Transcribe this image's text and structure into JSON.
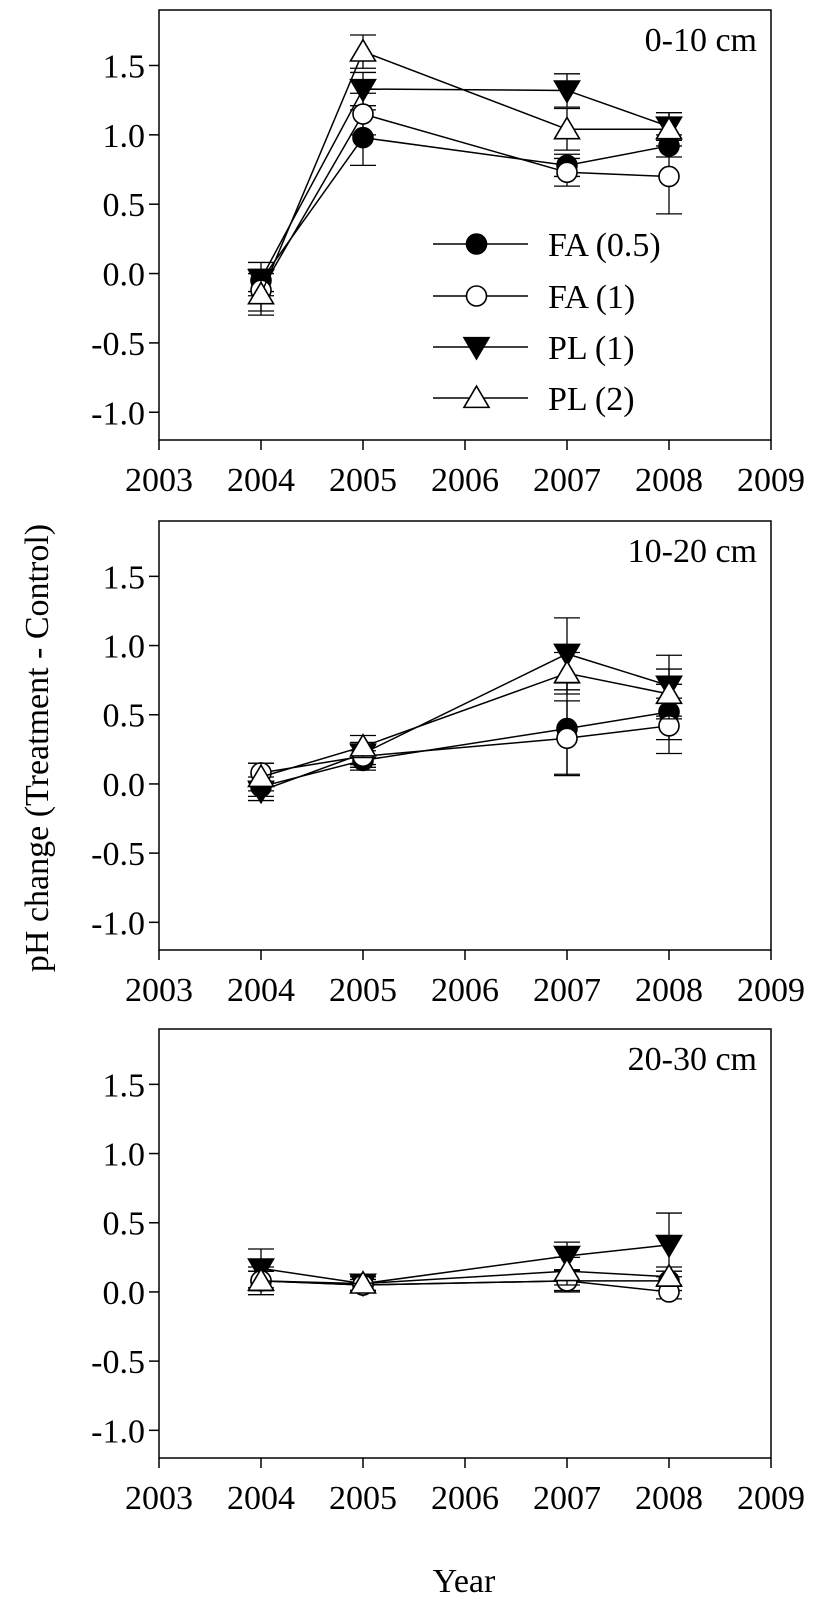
{
  "chart_data": {
    "type": "line",
    "ylabel": "pH change (Treatment - Control)",
    "xlabel": "Year",
    "xlim": [
      2003,
      2009
    ],
    "xticks": [
      2003,
      2004,
      2005,
      2006,
      2007,
      2008,
      2009
    ],
    "ylim": [
      -1.2,
      1.9
    ],
    "yticks": [
      -1.0,
      -0.5,
      0.0,
      0.5,
      1.0,
      1.5
    ],
    "ytick_labels": [
      "-1.0",
      "-0.5",
      "0.0",
      "0.5",
      "1.0",
      "1.5"
    ],
    "grid": false,
    "legend": {
      "placement": "inside top panel, center-right",
      "entries": [
        "FA (0.5)",
        "FA (1)",
        "PL (1)",
        "PL (2)"
      ]
    },
    "series_styles": [
      {
        "name": "FA (0.5)",
        "marker": "circle",
        "fill": "#000000"
      },
      {
        "name": "FA (1)",
        "marker": "circle",
        "fill": "#ffffff"
      },
      {
        "name": "PL (1)",
        "marker": "triangle-down",
        "fill": "#000000"
      },
      {
        "name": "PL (2)",
        "marker": "triangle-up",
        "fill": "#ffffff"
      }
    ],
    "panels": [
      {
        "label": "0-10 cm",
        "x": [
          2004,
          2005,
          2007,
          2008
        ],
        "series": [
          {
            "name": "FA (0.5)",
            "values": [
              -0.05,
              0.98,
              0.78,
              0.92
            ],
            "errors": [
              0.08,
              0.2,
              0.08,
              0.08
            ]
          },
          {
            "name": "FA (1)",
            "values": [
              -0.12,
              1.15,
              0.73,
              0.7
            ],
            "errors": [
              0.15,
              0.15,
              0.1,
              0.27
            ]
          },
          {
            "name": "PL (1)",
            "values": [
              -0.04,
              1.33,
              1.32,
              1.06
            ],
            "errors": [
              0.12,
              0.12,
              0.12,
              0.1
            ]
          },
          {
            "name": "PL (2)",
            "values": [
              -0.15,
              1.6,
              1.04,
              1.04
            ],
            "errors": [
              0.15,
              0.12,
              0.15,
              0.12
            ]
          }
        ]
      },
      {
        "label": "10-20 cm",
        "x": [
          2004,
          2005,
          2007,
          2008
        ],
        "series": [
          {
            "name": "FA (0.5)",
            "values": [
              -0.02,
              0.17,
              0.4,
              0.52
            ],
            "errors": [
              0.07,
              0.07,
              0.33,
              0.2
            ]
          },
          {
            "name": "FA (1)",
            "values": [
              0.08,
              0.2,
              0.33,
              0.42
            ],
            "errors": [
              0.07,
              0.08,
              0.27,
              0.2
            ]
          },
          {
            "name": "PL (1)",
            "values": [
              -0.05,
              0.22,
              0.94,
              0.71
            ],
            "errors": [
              0.07,
              0.08,
              0.26,
              0.22
            ]
          },
          {
            "name": "PL (2)",
            "values": [
              0.05,
              0.27,
              0.8,
              0.65
            ],
            "errors": [
              0.1,
              0.08,
              0.15,
              0.18
            ]
          }
        ]
      },
      {
        "label": "20-30 cm",
        "x": [
          2004,
          2005,
          2007,
          2008
        ],
        "series": [
          {
            "name": "FA (0.5)",
            "values": [
              0.08,
              0.05,
              0.08,
              0.08
            ],
            "errors": [
              0.1,
              0.04,
              0.08,
              0.07
            ]
          },
          {
            "name": "FA (1)",
            "values": [
              0.08,
              0.05,
              0.08,
              0.0
            ],
            "errors": [
              0.07,
              0.04,
              0.07,
              0.05
            ]
          },
          {
            "name": "PL (1)",
            "values": [
              0.17,
              0.06,
              0.26,
              0.34
            ],
            "errors": [
              0.14,
              0.05,
              0.1,
              0.23
            ]
          },
          {
            "name": "PL (2)",
            "values": [
              0.08,
              0.06,
              0.15,
              0.11
            ],
            "errors": [
              0.07,
              0.05,
              0.1,
              0.07
            ]
          }
        ]
      }
    ]
  }
}
